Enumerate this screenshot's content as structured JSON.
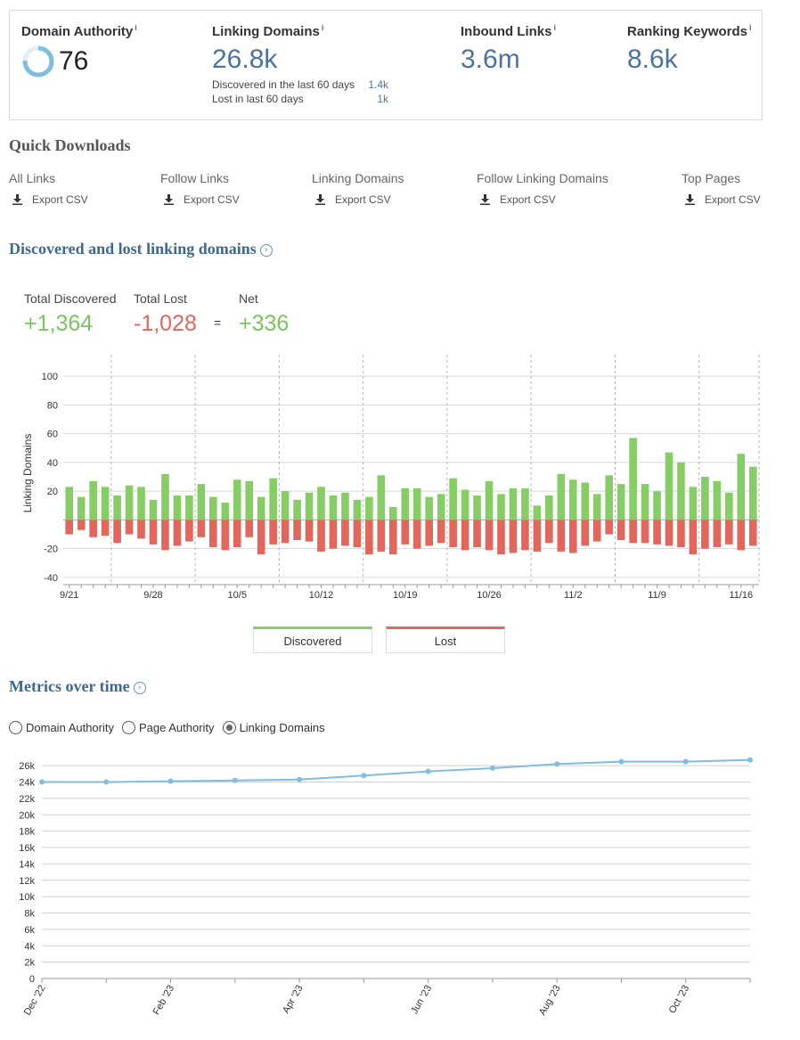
{
  "metrics": {
    "domain_authority": {
      "label": "Domain Authority",
      "info": "i",
      "value": "76",
      "gauge_fraction": 0.76
    },
    "linking_domains": {
      "label": "Linking Domains",
      "info": "i",
      "value": "26.8k",
      "discovered_label": "Discovered in the last 60 days",
      "discovered_value": "1.4k",
      "lost_label": "Lost in last 60 days",
      "lost_value": "1k"
    },
    "inbound_links": {
      "label": "Inbound Links",
      "info": "i",
      "value": "3.6m"
    },
    "ranking_keywords": {
      "label": "Ranking Keywords",
      "info": "i",
      "value": "8.6k"
    }
  },
  "quick_downloads": {
    "title": "Quick Downloads",
    "export_label": "Export CSV",
    "items": [
      {
        "label": "All Links"
      },
      {
        "label": "Follow Links"
      },
      {
        "label": "Linking Domains"
      },
      {
        "label": "Follow Linking Domains"
      },
      {
        "label": "Top Pages"
      }
    ]
  },
  "discovered_lost": {
    "title": "Discovered and lost linking domains",
    "total_discovered_label": "Total Discovered",
    "total_discovered_value": "+1,364",
    "total_lost_label": "Total Lost",
    "total_lost_value": "-1,028",
    "equals": "=",
    "net_label": "Net",
    "net_value": "+336",
    "legend_discovered": "Discovered",
    "legend_lost": "Lost"
  },
  "metrics_over_time": {
    "title": "Metrics over time",
    "options": [
      {
        "label": "Domain Authority",
        "selected": false
      },
      {
        "label": "Page Authority",
        "selected": false
      },
      {
        "label": "Linking Domains",
        "selected": true
      }
    ]
  },
  "chart_data": [
    {
      "type": "bar",
      "ylabel": "Linking Domains",
      "ylim": [
        -45,
        110
      ],
      "yticks": [
        100,
        80,
        60,
        40,
        20,
        -20,
        -40
      ],
      "grid": true,
      "xtick_labels": [
        "9/21",
        "9/28",
        "10/5",
        "10/12",
        "10/19",
        "10/26",
        "11/2",
        "11/9",
        "11/16"
      ],
      "colors": {
        "discovered": "#86cd65",
        "lost": "#e2665b"
      },
      "series": [
        {
          "name": "Discovered",
          "values": [
            23,
            16,
            27,
            23,
            17,
            24,
            23,
            14,
            32,
            17,
            17,
            25,
            16,
            12,
            28,
            27,
            16,
            29,
            20,
            14,
            19,
            23,
            17,
            19,
            14,
            16,
            31,
            9,
            22,
            22,
            16,
            18,
            29,
            21,
            17,
            27,
            18,
            22,
            22,
            10,
            17,
            32,
            28,
            26,
            18,
            31,
            25,
            57,
            25,
            20,
            47,
            40,
            23,
            30,
            27,
            19,
            46,
            37
          ]
        },
        {
          "name": "Lost",
          "values": [
            -10,
            -7,
            -12,
            -11,
            -16,
            -10,
            -13,
            -17,
            -21,
            -18,
            -15,
            -12,
            -19,
            -21,
            -19,
            -12,
            -24,
            -17,
            -16,
            -14,
            -15,
            -22,
            -20,
            -18,
            -19,
            -24,
            -22,
            -24,
            -17,
            -20,
            -18,
            -16,
            -19,
            -21,
            -19,
            -21,
            -24,
            -23,
            -21,
            -22,
            -16,
            -22,
            -23,
            -18,
            -15,
            -10,
            -14,
            -16,
            -16,
            -17,
            -18,
            -19,
            -24,
            -20,
            -19,
            -17,
            -21,
            -18
          ]
        }
      ]
    },
    {
      "type": "line",
      "yticks": [
        26000,
        24000,
        22000,
        20000,
        18000,
        16000,
        14000,
        12000,
        10000,
        8000,
        6000,
        4000,
        2000,
        0
      ],
      "ytick_labels": [
        "26k",
        "24k",
        "22k",
        "20k",
        "18k",
        "16k",
        "14k",
        "12k",
        "10k",
        "8k",
        "6k",
        "4k",
        "2k",
        "0"
      ],
      "ylim": [
        0,
        27000
      ],
      "grid": true,
      "color": "#7fbde0",
      "xtick_labels": [
        "Dec '22",
        "Feb '23",
        "Apr '23",
        "Jun '23",
        "Aug '23",
        "Oct '23"
      ],
      "x": [
        "Dec '22",
        "Jan '23",
        "Feb '23",
        "Mar '23",
        "Apr '23",
        "May '23",
        "Jun '23",
        "Jul '23",
        "Aug '23",
        "Sep '23",
        "Oct '23",
        "Nov '23"
      ],
      "values": [
        24000,
        24000,
        24100,
        24200,
        24300,
        24800,
        25300,
        25700,
        26200,
        26500,
        26500,
        26700
      ]
    }
  ]
}
